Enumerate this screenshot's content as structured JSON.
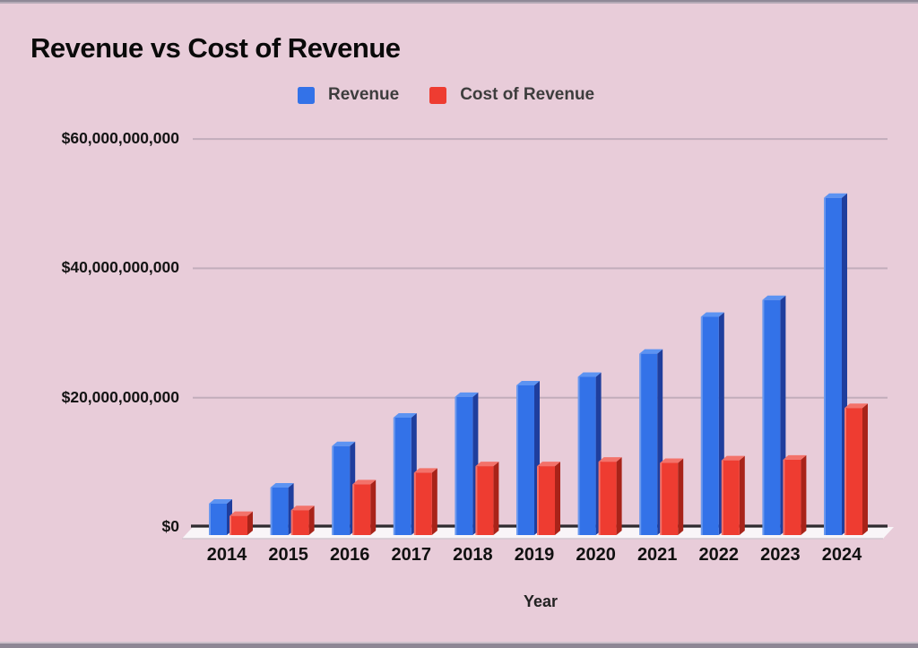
{
  "chart": {
    "title": "Revenue vs Cost of Revenue",
    "x_axis_title": "Year",
    "legend": [
      {
        "label": "Revenue",
        "color": "#3372e8"
      },
      {
        "label": "Cost of Revenue",
        "color": "#ee3c31"
      }
    ]
  },
  "chart_data": {
    "type": "bar",
    "style": "3d-columns",
    "title": "Revenue vs Cost of Revenue",
    "xlabel": "Year",
    "ylabel": "",
    "categories": [
      "2014",
      "2015",
      "2016",
      "2017",
      "2018",
      "2019",
      "2020",
      "2021",
      "2022",
      "2023",
      "2024"
    ],
    "series": [
      {
        "name": "Revenue",
        "color": "#3372e8",
        "color_top": "#5c93f2",
        "color_side": "#1f3e9d",
        "values": [
          4300000000,
          6800000000,
          13200000000,
          17600000000,
          20800000000,
          22600000000,
          23900000000,
          27500000000,
          33200000000,
          35800000000,
          51600000000
        ]
      },
      {
        "name": "Cost of Revenue",
        "color": "#ee3c31",
        "color_top": "#f3726a",
        "color_side": "#a82319",
        "values": [
          2400000000,
          3300000000,
          7300000000,
          9100000000,
          10100000000,
          10100000000,
          10800000000,
          10600000000,
          11000000000,
          11100000000,
          19100000000
        ]
      }
    ],
    "ylim": [
      0,
      60000000000
    ],
    "y_tick_labels": [
      "$0",
      "$20,000,000,000",
      "$40,000,000,000",
      "$60,000,000,000"
    ],
    "grid": true,
    "legend_position": "top",
    "background_color": "#e8ccd9",
    "gridline_color": "#c2adbb",
    "axis_line_color": "#2e2a2f"
  }
}
